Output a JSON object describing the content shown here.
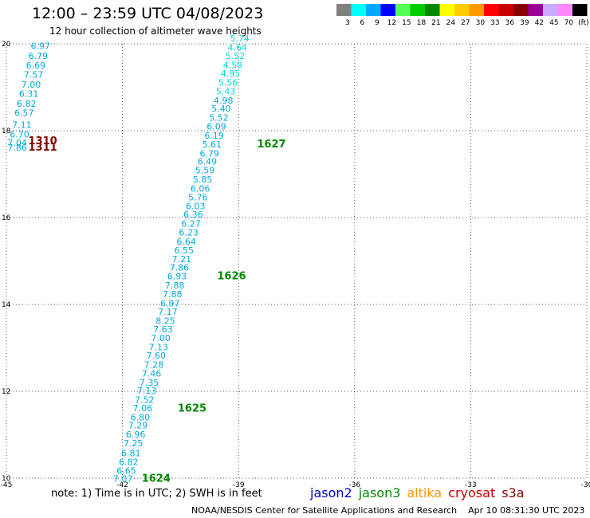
{
  "header": {
    "title": "12:00 – 23:59 UTC 04/08/2023",
    "subtitle": "12 hour collection of altimeter wave heights"
  },
  "color_bar": {
    "ticks": [
      "3",
      "6",
      "9",
      "12",
      "15",
      "18",
      "21",
      "24",
      "27",
      "30",
      "33",
      "36",
      "39",
      "42",
      "45",
      "70",
      "(ft)"
    ],
    "colors": [
      "#808080",
      "#00ffff",
      "#00aaff",
      "#0000ff",
      "#55ff55",
      "#00cc00",
      "#008800",
      "#ffff00",
      "#ffcc00",
      "#ff9900",
      "#ff0000",
      "#cc0000",
      "#880000",
      "#990099",
      "#ccaaff",
      "#ff88ff",
      "#000000"
    ]
  },
  "footer": {
    "note": "note: 1) Time is in UTC; 2) SWH is in feet",
    "satellites": [
      {
        "name": "jason2",
        "color": "#0000cc"
      },
      {
        "name": "jason3",
        "color": "#008800"
      },
      {
        "name": "altika",
        "color": "#ff9900"
      },
      {
        "name": "cryosat",
        "color": "#cc0000"
      },
      {
        "name": "s3a",
        "color": "#880000"
      }
    ],
    "credit": "NOAA/NESDIS Center for Satellite Applications and Research",
    "timestamp": "Apr 10 08:31:30 UTC 2023"
  },
  "chart_data": {
    "type": "scatter",
    "xlim": [
      -45,
      -30
    ],
    "ylim": [
      10,
      20
    ],
    "x_ticks": [
      "-45",
      "-42",
      "-39",
      "-36",
      "-33",
      "-30"
    ],
    "x_tick_values": [
      -45,
      -42,
      -39,
      -36,
      -33,
      -30
    ],
    "y_ticks": [
      "10",
      "12",
      "14",
      "16",
      "18",
      "20"
    ],
    "y_tick_values": [
      10,
      12,
      14,
      16,
      18,
      20
    ],
    "grid": true,
    "series": [
      {
        "color": "#00aadd",
        "points": [
          {
            "x": -41.99,
            "y": 10.01,
            "label": "7.07"
          },
          {
            "x": -41.9,
            "y": 10.19,
            "label": "6.65"
          },
          {
            "x": -41.84,
            "y": 10.39,
            "label": "6.82"
          },
          {
            "x": -41.78,
            "y": 10.6,
            "label": "6.81"
          },
          {
            "x": -41.72,
            "y": 10.83,
            "label": "7.25"
          },
          {
            "x": -41.66,
            "y": 11.03,
            "label": "6.96"
          },
          {
            "x": -41.6,
            "y": 11.24,
            "label": "7.29"
          },
          {
            "x": -41.54,
            "y": 11.42,
            "label": "6.80"
          },
          {
            "x": -41.48,
            "y": 11.63,
            "label": "7.06"
          },
          {
            "x": -41.43,
            "y": 11.83,
            "label": "7.52"
          },
          {
            "x": -41.37,
            "y": 12.04,
            "label": "7.13"
          },
          {
            "x": -41.31,
            "y": 12.22,
            "label": "7.35"
          },
          {
            "x": -41.25,
            "y": 12.43,
            "label": "7.46"
          },
          {
            "x": -41.19,
            "y": 12.63,
            "label": "7.28"
          },
          {
            "x": -41.13,
            "y": 12.84,
            "label": "7.60"
          },
          {
            "x": -41.07,
            "y": 13.04,
            "label": "7.13"
          },
          {
            "x": -41.01,
            "y": 13.25,
            "label": "7.00"
          },
          {
            "x": -40.95,
            "y": 13.45,
            "label": "7.63"
          },
          {
            "x": -40.89,
            "y": 13.64,
            "label": "8.25"
          },
          {
            "x": -40.83,
            "y": 13.85,
            "label": "7.17"
          },
          {
            "x": -40.77,
            "y": 14.05,
            "label": "6.97"
          },
          {
            "x": -40.71,
            "y": 14.26,
            "label": "7.88"
          },
          {
            "x": -40.65,
            "y": 14.46,
            "label": "7.88"
          },
          {
            "x": -40.59,
            "y": 14.67,
            "label": "6.93"
          },
          {
            "x": -40.53,
            "y": 14.87,
            "label": "7.86"
          },
          {
            "x": -40.47,
            "y": 15.06,
            "label": "7.21"
          },
          {
            "x": -40.41,
            "y": 15.27,
            "label": "6.55"
          },
          {
            "x": -40.35,
            "y": 15.47,
            "label": "6.64"
          },
          {
            "x": -40.29,
            "y": 15.68,
            "label": "6.23"
          },
          {
            "x": -40.23,
            "y": 15.88,
            "label": "6.27"
          },
          {
            "x": -40.17,
            "y": 16.09,
            "label": "6.36"
          },
          {
            "x": -40.11,
            "y": 16.28,
            "label": "6.03"
          },
          {
            "x": -40.05,
            "y": 16.49,
            "label": "5.76"
          },
          {
            "x": -39.99,
            "y": 16.69,
            "label": "6.06"
          },
          {
            "x": -39.93,
            "y": 16.9,
            "label": "5.85"
          },
          {
            "x": -39.87,
            "y": 17.11,
            "label": "5.59"
          },
          {
            "x": -39.81,
            "y": 17.31,
            "label": "6.49"
          },
          {
            "x": -39.75,
            "y": 17.5,
            "label": "6.79"
          },
          {
            "x": -39.69,
            "y": 17.71,
            "label": "5.61"
          },
          {
            "x": -39.63,
            "y": 17.91,
            "label": "6.19"
          },
          {
            "x": -39.57,
            "y": 18.12,
            "label": "6.09"
          },
          {
            "x": -39.51,
            "y": 18.32,
            "label": "5.52"
          },
          {
            "x": -39.45,
            "y": 18.53,
            "label": "5.40"
          },
          {
            "x": -39.39,
            "y": 18.72,
            "label": "4.98"
          }
        ]
      },
      {
        "color": "#00dddd",
        "points": [
          {
            "x": -39.33,
            "y": 18.93,
            "label": "5.43"
          },
          {
            "x": -39.27,
            "y": 19.13,
            "label": "5.56"
          },
          {
            "x": -39.21,
            "y": 19.34,
            "label": "4.95"
          },
          {
            "x": -39.15,
            "y": 19.53,
            "label": "4.59"
          },
          {
            "x": -39.09,
            "y": 19.74,
            "label": "5.52"
          },
          {
            "x": -39.03,
            "y": 19.94,
            "label": "4.64"
          },
          {
            "x": -38.97,
            "y": 20.15,
            "label": "5.74"
          }
        ]
      },
      {
        "color": "#00aadd",
        "points": [
          {
            "x": -44.72,
            "y": 17.63,
            "label": "7.86"
          },
          {
            "x": -44.72,
            "y": 17.74,
            "label": "7.04"
          },
          {
            "x": -44.66,
            "y": 17.94,
            "label": "6.70"
          },
          {
            "x": -44.6,
            "y": 18.16,
            "label": "7.11"
          },
          {
            "x": -44.54,
            "y": 18.43,
            "label": "6.57"
          },
          {
            "x": -44.48,
            "y": 18.64,
            "label": "6.82"
          },
          {
            "x": -44.42,
            "y": 18.87,
            "label": "6.31"
          },
          {
            "x": -44.36,
            "y": 19.08,
            "label": "7.00"
          },
          {
            "x": -44.3,
            "y": 19.31,
            "label": "7.57"
          },
          {
            "x": -44.24,
            "y": 19.52,
            "label": "6.69"
          },
          {
            "x": -44.18,
            "y": 19.74,
            "label": "6.79"
          },
          {
            "x": -44.12,
            "y": 19.97,
            "label": "6.97"
          }
        ]
      }
    ],
    "annotations": [
      {
        "x": -41.13,
        "y": 10.01,
        "text": "1624",
        "color": "#008800"
      },
      {
        "x": -40.2,
        "y": 11.62,
        "text": "1625",
        "color": "#008800"
      },
      {
        "x": -39.18,
        "y": 14.67,
        "text": "1626",
        "color": "#008800"
      },
      {
        "x": -38.15,
        "y": 17.71,
        "text": "1627",
        "color": "#008800"
      },
      {
        "x": -44.06,
        "y": 17.78,
        "text": "1310",
        "color": "#880000"
      },
      {
        "x": -44.06,
        "y": 17.63,
        "text": "1311",
        "color": "#880000"
      }
    ]
  }
}
